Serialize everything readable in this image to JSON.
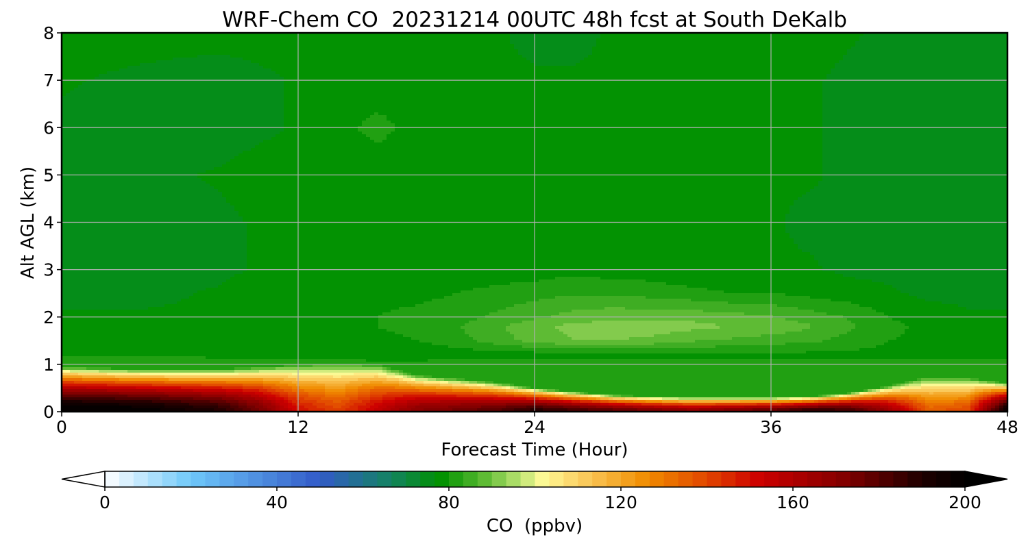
{
  "chart_data": {
    "type": "heatmap",
    "title": "WRF-Chem CO  20231214 00UTC 48h fcst at South DeKalb",
    "xlabel": "Forecast Time (Hour)",
    "ylabel": "Alt AGL (km)",
    "xlim": [
      0,
      48
    ],
    "ylim": [
      0,
      8
    ],
    "xticks": [
      0,
      12,
      24,
      36,
      48
    ],
    "yticks": [
      0,
      1,
      2,
      3,
      4,
      5,
      6,
      7,
      8
    ],
    "grid": true,
    "colorbar": {
      "label": "CO  (ppbv)",
      "min": 0,
      "max": 200,
      "ticks": [
        0,
        40,
        80,
        120,
        160,
        200
      ],
      "extend": "both",
      "levels": 60
    },
    "x_hours": [
      0,
      4,
      8,
      10,
      12,
      14,
      16,
      18,
      20,
      22,
      24,
      26,
      28,
      30,
      32,
      34,
      36,
      38,
      40,
      42,
      44,
      46,
      48
    ],
    "y_km": [
      0.0,
      0.1,
      0.2,
      0.3,
      0.4,
      0.5,
      0.6,
      0.7,
      0.8,
      0.9,
      1.0,
      1.2,
      1.5,
      1.8,
      2.0,
      2.5,
      3.0,
      4.0,
      5.0,
      6.0,
      7.0,
      8.0
    ],
    "ceiling_km": [
      0.95,
      0.9,
      0.9,
      0.95,
      1.0,
      1.05,
      1.0,
      0.78,
      0.7,
      0.62,
      0.5,
      0.42,
      0.35,
      0.32,
      0.3,
      0.3,
      0.3,
      0.32,
      0.4,
      0.55,
      0.75,
      0.72,
      0.6
    ],
    "surface_ppbv": [
      202,
      200,
      190,
      175,
      150,
      140,
      155,
      170,
      175,
      180,
      190,
      185,
      180,
      175,
      170,
      175,
      180,
      190,
      185,
      165,
      135,
      140,
      200
    ],
    "upper_ppbv": [
      [
        82,
        82,
        82,
        82,
        82,
        82,
        82,
        82,
        82,
        82,
        82,
        82,
        82,
        82,
        82,
        82,
        82,
        82,
        82,
        82,
        82,
        82,
        82
      ],
      [
        80,
        80,
        79,
        79,
        79,
        78,
        77,
        77,
        78,
        78,
        78,
        79,
        79,
        79,
        79,
        79,
        79,
        79,
        79,
        79,
        79,
        79,
        79
      ],
      [
        78,
        78,
        78,
        78,
        79,
        79,
        79,
        80,
        82,
        85,
        88,
        90,
        90,
        89,
        87,
        86,
        85,
        84,
        82,
        80,
        79,
        78,
        78
      ],
      [
        78,
        78,
        78,
        78,
        78,
        79,
        80,
        81,
        83,
        86,
        89,
        91,
        92,
        92,
        91,
        90,
        89,
        87,
        84,
        81,
        79,
        78,
        78
      ],
      [
        77,
        77,
        77,
        78,
        78,
        79,
        80,
        81,
        82,
        84,
        86,
        88,
        89,
        89,
        89,
        88,
        87,
        85,
        83,
        80,
        78,
        77,
        77
      ],
      [
        76,
        76,
        77,
        78,
        78,
        79,
        79,
        79,
        80,
        81,
        82,
        83,
        83,
        82,
        81,
        80,
        80,
        79,
        78,
        77,
        76,
        76,
        76
      ],
      [
        75,
        75,
        76,
        77,
        77,
        77,
        77,
        77,
        78,
        78,
        78,
        79,
        78,
        78,
        77,
        77,
        77,
        77,
        76,
        76,
        75,
        75,
        75
      ],
      [
        74,
        75,
        76,
        77,
        77,
        77,
        77,
        77,
        77,
        77,
        77,
        77,
        77,
        77,
        77,
        77,
        77,
        76,
        76,
        75,
        75,
        74,
        74
      ],
      [
        75,
        76,
        77,
        78,
        78,
        78,
        78,
        78,
        77,
        77,
        77,
        77,
        77,
        77,
        77,
        77,
        77,
        77,
        76,
        76,
        76,
        75,
        75
      ],
      [
        76,
        75,
        75,
        76,
        77,
        79,
        81,
        79,
        78,
        77,
        77,
        77,
        77,
        77,
        77,
        77,
        77,
        77,
        76,
        76,
        76,
        76,
        76
      ],
      [
        77,
        76,
        75,
        76,
        77,
        78,
        78,
        78,
        77,
        77,
        77,
        77,
        77,
        77,
        77,
        77,
        78,
        77,
        76,
        76,
        75,
        75,
        75
      ],
      [
        78,
        78,
        78,
        78,
        78,
        78,
        78,
        77,
        77,
        77,
        76,
        76,
        77,
        77,
        77,
        78,
        78,
        78,
        77,
        76,
        75,
        75,
        75
      ]
    ]
  }
}
